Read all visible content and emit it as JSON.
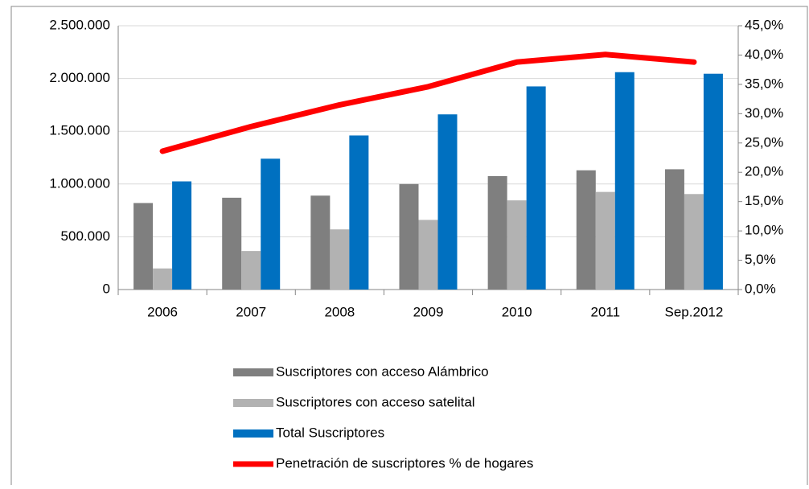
{
  "chart_data": {
    "type": "bar_line",
    "categories": [
      "2006",
      "2007",
      "2008",
      "2009",
      "2010",
      "2011",
      "Sep.2012"
    ],
    "series": [
      {
        "name": "Suscriptores con acceso Alámbrico",
        "color": "#7f7f7f",
        "type": "bar",
        "values": [
          820000,
          870000,
          890000,
          1000000,
          1075000,
          1130000,
          1140000
        ]
      },
      {
        "name": "Suscriptores con acceso satelital",
        "color": "#b2b2b2",
        "type": "bar",
        "values": [
          200000,
          365000,
          570000,
          660000,
          845000,
          925000,
          905000
        ]
      },
      {
        "name": "Total Suscriptores",
        "color": "#0070c0",
        "type": "bar",
        "values": [
          1025000,
          1240000,
          1460000,
          1660000,
          1925000,
          2060000,
          2045000
        ]
      },
      {
        "name": "Penetración de suscriptores % de hogares",
        "color": "#ff0000",
        "type": "line",
        "axis": "y2",
        "values": [
          23.6,
          27.8,
          31.5,
          34.6,
          38.8,
          40.1,
          38.8
        ]
      }
    ],
    "ylim": [
      0,
      2500000
    ],
    "yticks": [
      0,
      {
        "value": 500000,
        "label": "500.000"
      },
      {
        "value": 1000000,
        "label": "1.000.000"
      },
      {
        "value": 1500000,
        "label": "1.500.000"
      },
      {
        "value": 2000000,
        "label": "2.000.000"
      },
      {
        "value": 2500000,
        "label": "2.500.000"
      }
    ],
    "y2lim": [
      0,
      45
    ],
    "y2ticks": [
      {
        "value": 0,
        "label": "0,0%"
      },
      {
        "value": 5,
        "label": "5,0%"
      },
      {
        "value": 10,
        "label": "10,0%"
      },
      {
        "value": 15,
        "label": "15,0%"
      },
      {
        "value": 20,
        "label": "20,0%"
      },
      {
        "value": 25,
        "label": "25,0%"
      },
      {
        "value": 30,
        "label": "30,0%"
      },
      {
        "value": 35,
        "label": "35,0%"
      },
      {
        "value": 40,
        "label": "40,0%"
      },
      {
        "value": 45,
        "label": "45,0%"
      }
    ],
    "grid": true
  }
}
